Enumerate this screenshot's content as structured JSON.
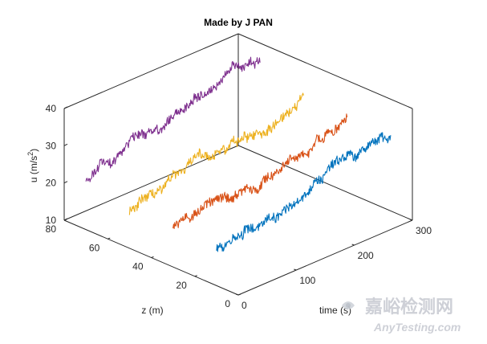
{
  "chart_data": {
    "type": "line",
    "title": "Made by J PAN",
    "xlabel": "time (s)",
    "ylabel": "z (m)",
    "zlabel": "u (m/s",
    "zlabel_superscript": "2",
    "zlabel_close": ")",
    "x_ticks": [
      "0",
      "100",
      "200",
      "300"
    ],
    "y_ticks": [
      "0",
      "20",
      "40",
      "60",
      "80"
    ],
    "z_ticks": [
      "10",
      "20",
      "30",
      "40"
    ],
    "xlim": [
      0,
      300
    ],
    "ylim": [
      0,
      80
    ],
    "zlim": [
      10,
      40
    ],
    "series": [
      {
        "z": 10,
        "color": "#0072BD",
        "start": 20,
        "end": 30
      },
      {
        "z": 30,
        "color": "#D95319",
        "start": 20,
        "end": 30
      },
      {
        "z": 50,
        "color": "#EDB120",
        "start": 20,
        "end": 31
      },
      {
        "z": 70,
        "color": "#7E2F8E",
        "start": 23,
        "end": 35
      }
    ],
    "grid": false,
    "legend": "none"
  },
  "watermark": {
    "cn": "嘉峪检测网",
    "en": "AnyTesting.com"
  }
}
